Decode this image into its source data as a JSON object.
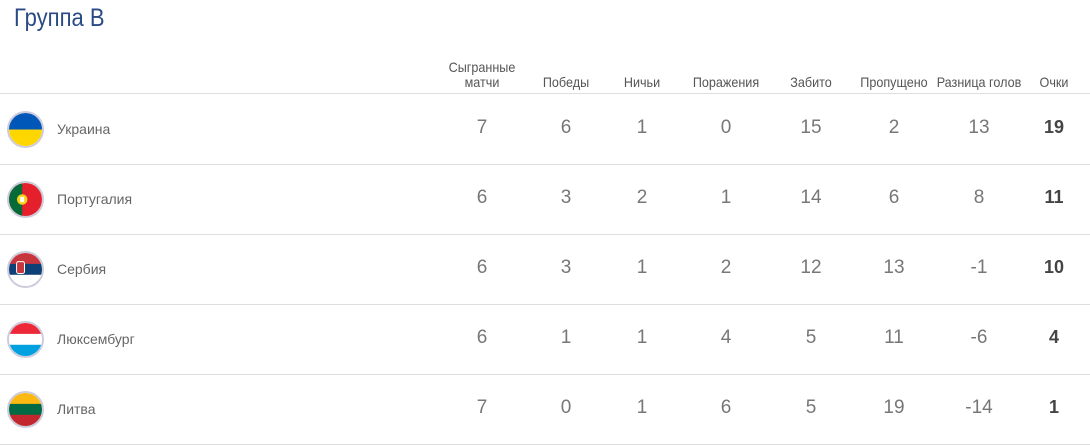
{
  "title": "Группа B",
  "columns": [
    "Сыгранные матчи",
    "Победы",
    "Ничьи",
    "Поражения",
    "Забито",
    "Пропущено",
    "Разница голов",
    "Очки"
  ],
  "rows": [
    {
      "team": "Украина",
      "flag": "ukraine-flag-icon",
      "values": [
        "7",
        "6",
        "1",
        "0",
        "15",
        "2",
        "13",
        "19"
      ]
    },
    {
      "team": "Португалия",
      "flag": "portugal-flag-icon",
      "values": [
        "6",
        "3",
        "2",
        "1",
        "14",
        "6",
        "8",
        "11"
      ]
    },
    {
      "team": "Сербия",
      "flag": "serbia-flag-icon",
      "values": [
        "6",
        "3",
        "1",
        "2",
        "12",
        "13",
        "-1",
        "10"
      ]
    },
    {
      "team": "Люксембург",
      "flag": "luxembourg-flag-icon",
      "values": [
        "6",
        "1",
        "1",
        "4",
        "5",
        "11",
        "-6",
        "4"
      ]
    },
    {
      "team": "Литва",
      "flag": "lithuania-flag-icon",
      "values": [
        "7",
        "0",
        "1",
        "6",
        "5",
        "19",
        "-14",
        "1"
      ]
    }
  ]
}
